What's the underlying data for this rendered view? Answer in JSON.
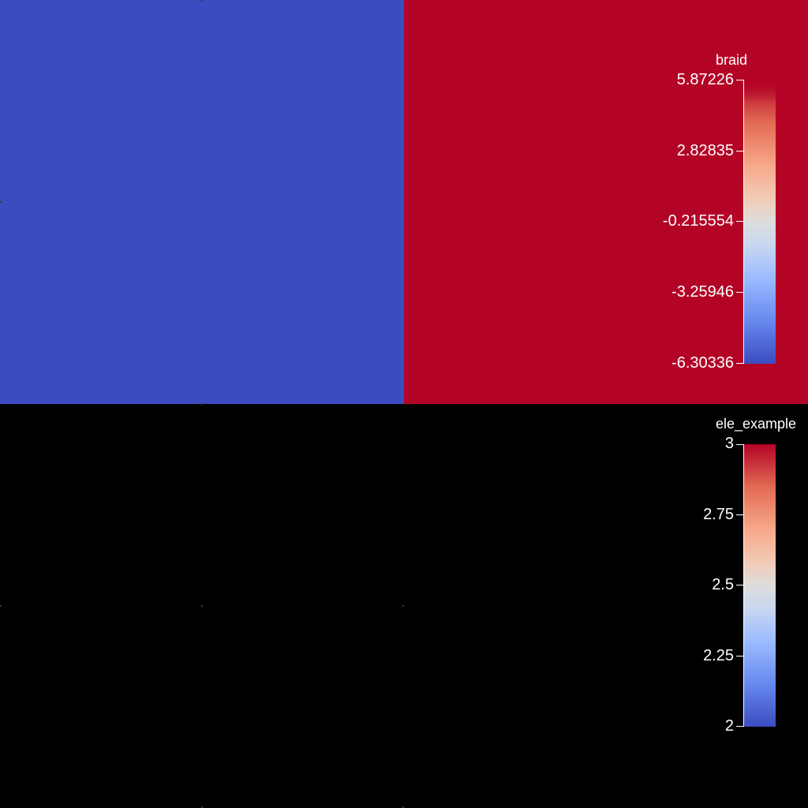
{
  "colors": {
    "background": "#000000",
    "cold": "#3b4cc0",
    "hot": "#b40426",
    "mid": "#dddddd"
  },
  "plots": [
    {
      "field": "braid",
      "cells": [
        {
          "position": "top-left",
          "color": "#3b4cc0"
        },
        {
          "position": "top-right",
          "color": "#b40426"
        }
      ],
      "legend": {
        "title": "braid",
        "colormap": "cool-to-warm",
        "ticks": [
          "5.87226",
          "2.82835",
          "-0.215554",
          "-3.25946",
          "-6.30336"
        ],
        "range": [
          -6.30336,
          5.87226
        ],
        "top_fade": true
      }
    },
    {
      "field": "ele_example",
      "cells": [],
      "legend": {
        "title": "ele_example",
        "colormap": "cool-to-warm",
        "ticks": [
          "3",
          "2.75",
          "2.5",
          "2.25",
          "2"
        ],
        "range": [
          2,
          3
        ],
        "top_fade": false
      }
    }
  ]
}
